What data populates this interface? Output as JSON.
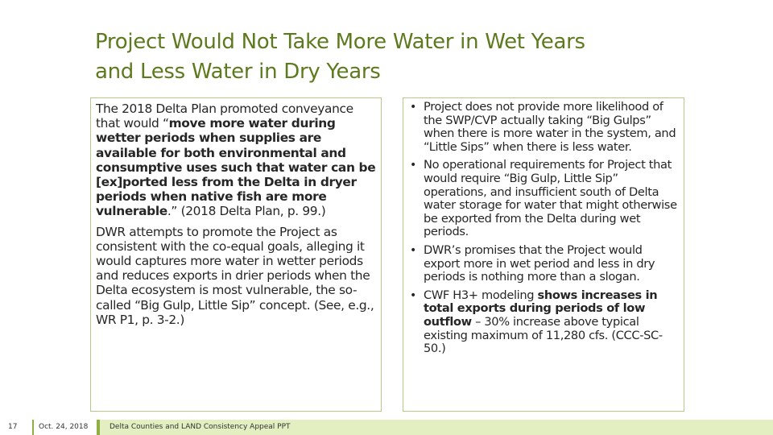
{
  "slide": {
    "title_line1": "Project Would Not Take More Water in Wet Years",
    "title_line2": "and Less Water in Dry Years"
  },
  "left": {
    "p1_intro": "The 2018 Delta Plan promoted conveyance that would “",
    "p1_bold": "move more water during wetter periods when supplies are available for both environmental and consumptive uses such that water can be [ex]ported less from the Delta in dryer periods when native fish are more vulnerable",
    "p1_end": ".” (2018 Delta Plan, p. 99.)",
    "p2": "DWR attempts to promote the Project as consistent with the co-equal goals, alleging it would captures more water in wetter periods and reduces exports in drier periods when the Delta ecosystem is most vulnerable, the so-called “Big Gulp, Little Sip” concept. (See, e.g., WR P1, p. 3-2.)"
  },
  "right": {
    "bullet_glyph": "•",
    "b1": "Project does not provide more likelihood of the SWP/CVP actually taking “Big Gulps” when there is more water in the system, and “Little Sips” when there is less water.",
    "b2": "No operational requirements for Project that would require “Big Gulp, Little Sip” operations, and insufficient south of Delta water storage for water that might otherwise be exported from the Delta during wet periods.",
    "b3": "DWR’s promises that the Project would export more in wet period and less in dry periods is nothing more than a slogan.",
    "b4_intro": "CWF H3+ modeling ",
    "b4_bold": "shows increases in total exports during periods of low outflow",
    "b4_end": " – 30% increase above typical existing maximum of 11,280 cfs. (CCC-SC-50.)"
  },
  "footer": {
    "slide_number": "17",
    "date": "Oct. 24, 2018",
    "text": "Delta Counties and LAND Consistency Appeal PPT"
  }
}
